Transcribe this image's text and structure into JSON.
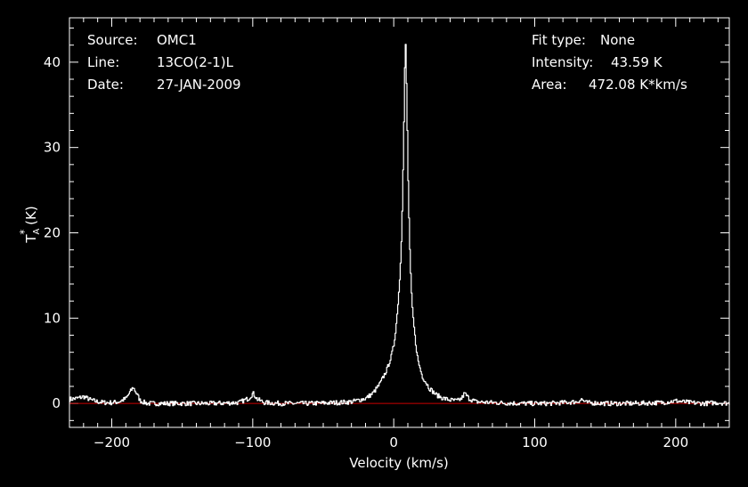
{
  "info": {
    "source_label": "Source:",
    "source_value": "OMC1",
    "line_label": "Line:",
    "line_value": "13CO(2-1)L",
    "date_label": "Date:",
    "date_value": "27-JAN-2009",
    "fit_label": "Fit type:",
    "fit_value": "None",
    "intensity_label": "Intensity:",
    "intensity_value": "43.59 K",
    "area_label": "Area:",
    "area_value": "472.08 K*km/s"
  },
  "chart_data": {
    "type": "line",
    "xlabel": "Velocity (km/s)",
    "ylabel_main": "T",
    "ylabel_sup": "*",
    "ylabel_sub": "A",
    "ylabel_unit": " (K)",
    "xlim": [
      -230,
      238
    ],
    "ylim": [
      -2.8,
      45.2
    ],
    "x_ticks": [
      -200,
      -100,
      0,
      100,
      200
    ],
    "x_tick_labels": [
      "−200",
      "−100",
      "0",
      "100",
      "200"
    ],
    "y_ticks": [
      0,
      10,
      20,
      30,
      40
    ],
    "y_tick_labels": [
      "0",
      "10",
      "20",
      "30",
      "40"
    ],
    "baseline": 0,
    "colors": {
      "spectrum": "#ffffff",
      "baseline": "#cc0000",
      "axes": "#ffffff",
      "background": "#000000"
    },
    "series": [
      {
        "x": [
          -230,
          -225,
          -220,
          -215,
          -210,
          -205,
          -200,
          -195,
          -190,
          -187,
          -185,
          -183,
          -180,
          -175,
          -165,
          -150,
          -130,
          -110,
          -103,
          -100,
          -97,
          -92,
          -80,
          -60,
          -40,
          -30,
          -20,
          -15,
          -10,
          -5,
          -2,
          0,
          2,
          4,
          5,
          6,
          7,
          8,
          9,
          10,
          11,
          12,
          13,
          15,
          17,
          20,
          25,
          30,
          35,
          40,
          45,
          48,
          50,
          53,
          58,
          70,
          90,
          110,
          130,
          133,
          136,
          150,
          170,
          190,
          200,
          210,
          220,
          230,
          238
        ],
        "y": [
          0.5,
          0.6,
          0.8,
          0.4,
          0.2,
          0.1,
          0.1,
          0.2,
          0.6,
          1.4,
          1.9,
          1.3,
          0.3,
          0.0,
          0.0,
          0.0,
          0.0,
          0.1,
          0.6,
          1.2,
          0.5,
          0.1,
          0.0,
          0.0,
          0.1,
          0.2,
          0.6,
          1.2,
          2.3,
          4.0,
          5.5,
          7.0,
          10.0,
          14.5,
          18.0,
          24.0,
          33.0,
          43.6,
          36.0,
          26.0,
          19.0,
          14.0,
          11.0,
          7.5,
          5.0,
          3.2,
          1.8,
          1.0,
          0.6,
          0.4,
          0.3,
          0.6,
          1.2,
          0.6,
          0.2,
          0.1,
          0.0,
          0.0,
          0.2,
          0.5,
          0.1,
          0.0,
          0.0,
          0.1,
          0.3,
          0.1,
          0.0,
          0.1,
          0.0
        ]
      }
    ]
  }
}
